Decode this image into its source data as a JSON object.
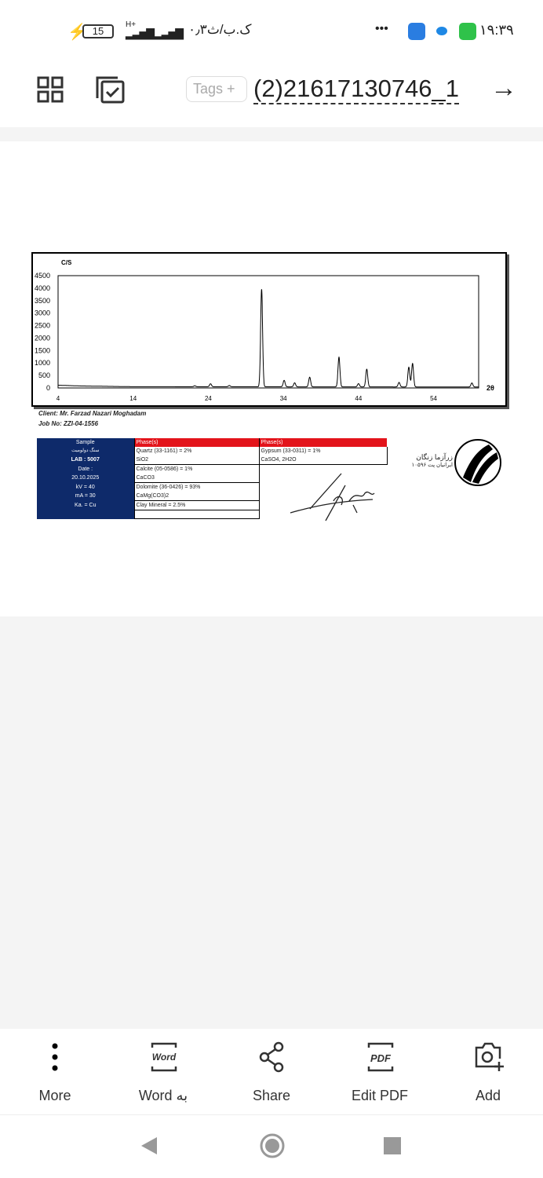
{
  "status": {
    "battery": "15",
    "network": "H+",
    "data_speed": "۰٫۳ک.ب/ث",
    "time": "۱۹:۳۹",
    "more": "•••"
  },
  "toolbar": {
    "tags_label": "Tags",
    "title": "(2)21617130746_1"
  },
  "document": {
    "client": "Client: Mr. Farzad Nazari Moghadam",
    "job": "Job No: ZZI-04-1556",
    "table": {
      "headers": [
        "Sample",
        "Phase(s)",
        "Phase(s)"
      ],
      "sample": [
        "سنگ دولومیت",
        "LAB : 5007",
        "Date :",
        "20.10.2025",
        "kV = 40",
        "mA = 30",
        "Ka. = Cu",
        ""
      ],
      "phases1": [
        "Quartz    (33-1161) = 2%",
        "SiO2",
        "Calcite    (05-0586) = 1%",
        "CaCO3",
        "Dolomite    (36-0426) = 93%",
        "CaMg(CO3)2",
        "Clay Mineral = 2.5%",
        ""
      ],
      "phases2": [
        "Gypsum  (33-0311) = 1%",
        "CaSO4, 2H2O"
      ]
    },
    "logo_text": [
      "زرآزما زنگان",
      "ایرانیان پت ۱۰۵۹۶"
    ]
  },
  "chart_data": {
    "type": "line",
    "ylabel": "C/S",
    "xlabel": "2θ",
    "xlim": [
      4,
      60
    ],
    "ylim": [
      0,
      4500
    ],
    "xticks": [
      4,
      14,
      24,
      34,
      44,
      54
    ],
    "yticks": [
      0,
      500,
      1000,
      1500,
      2000,
      2500,
      3000,
      3500,
      4000,
      4500
    ],
    "grid": false,
    "peaks": [
      {
        "x": 22.2,
        "y": 80
      },
      {
        "x": 24.3,
        "y": 160
      },
      {
        "x": 26.8,
        "y": 90
      },
      {
        "x": 31.1,
        "y": 3950
      },
      {
        "x": 34.1,
        "y": 300
      },
      {
        "x": 35.5,
        "y": 200
      },
      {
        "x": 37.5,
        "y": 430
      },
      {
        "x": 41.4,
        "y": 1230
      },
      {
        "x": 44.0,
        "y": 170
      },
      {
        "x": 45.1,
        "y": 750
      },
      {
        "x": 49.4,
        "y": 220
      },
      {
        "x": 50.7,
        "y": 830
      },
      {
        "x": 51.2,
        "y": 980
      },
      {
        "x": 59.1,
        "y": 200
      }
    ],
    "baseline": [
      {
        "x": 4,
        "y": 110
      },
      {
        "x": 7,
        "y": 80
      },
      {
        "x": 14,
        "y": 50
      },
      {
        "x": 60,
        "y": 40
      }
    ]
  },
  "bottom": {
    "items": [
      {
        "label": "More"
      },
      {
        "label": "Word به"
      },
      {
        "label": "Share"
      },
      {
        "label": "Edit PDF"
      },
      {
        "label": "Add"
      }
    ],
    "word_icon_text": "Word",
    "pdf_icon_text": "PDF"
  }
}
